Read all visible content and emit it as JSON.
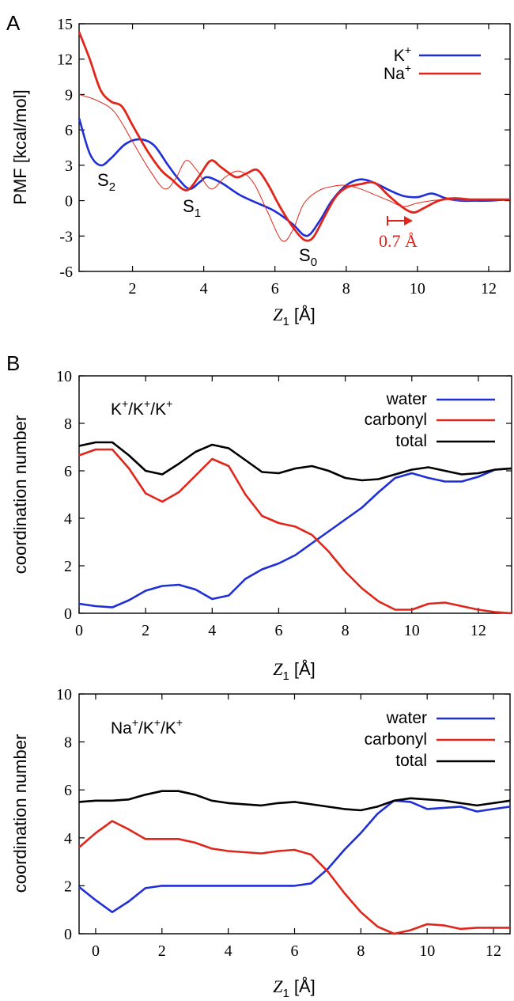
{
  "chart_data": [
    {
      "panel": "A",
      "type": "line",
      "xlabel": "Z1 [Å]",
      "ylabel": "PMF [kcal/mol]",
      "xlim": [
        0.5,
        12.6
      ],
      "ylim": [
        -6,
        15
      ],
      "xticks": [
        2,
        4,
        6,
        8,
        10,
        12
      ],
      "yticks": [
        -6,
        -3,
        0,
        3,
        6,
        9,
        12,
        15
      ],
      "legend_position": "top-right",
      "legend": [
        "K+",
        "Na+"
      ],
      "annotations": [
        "S2",
        "S1",
        "S0",
        "0.7 Å"
      ],
      "series": [
        {
          "name": "K+",
          "color": "#1f2fd6",
          "width": 2.6,
          "x": [
            0.5,
            0.8,
            1.1,
            1.4,
            1.8,
            2.2,
            2.6,
            3.0,
            3.3,
            3.6,
            3.9,
            4.1,
            4.5,
            5.0,
            5.5,
            6.0,
            6.5,
            6.8,
            7.0,
            7.3,
            7.6,
            8.0,
            8.4,
            8.8,
            9.2,
            9.6,
            10.0,
            10.4,
            10.8,
            11.2,
            11.6,
            12.0,
            12.6
          ],
          "y": [
            7.0,
            4.0,
            3.0,
            3.6,
            4.8,
            5.2,
            4.7,
            3.0,
            1.8,
            1.0,
            1.6,
            2.0,
            1.5,
            0.5,
            -0.2,
            -0.9,
            -2.0,
            -2.9,
            -2.8,
            -1.5,
            0.0,
            1.3,
            1.8,
            1.5,
            0.9,
            0.4,
            0.3,
            0.6,
            0.2,
            0.0,
            0.0,
            0.0,
            0.1
          ]
        },
        {
          "name": "Na+",
          "color": "#e0261b",
          "width": 2.8,
          "x": [
            0.5,
            0.8,
            1.1,
            1.4,
            1.7,
            2.0,
            2.4,
            2.8,
            3.1,
            3.4,
            3.6,
            3.9,
            4.2,
            4.5,
            4.9,
            5.2,
            5.5,
            5.8,
            6.1,
            6.4,
            6.7,
            6.9,
            7.1,
            7.4,
            7.7,
            8.0,
            8.4,
            8.8,
            9.2,
            9.6,
            9.9,
            10.2,
            10.6,
            11.0,
            11.5,
            12.0,
            12.6
          ],
          "y": [
            14.3,
            12.0,
            9.4,
            8.4,
            8.0,
            6.4,
            4.3,
            2.6,
            1.8,
            1.0,
            1.0,
            2.2,
            3.4,
            2.8,
            2.0,
            2.3,
            2.6,
            1.4,
            -0.3,
            -1.8,
            -3.0,
            -3.4,
            -3.0,
            -1.3,
            0.3,
            1.1,
            1.4,
            1.5,
            0.4,
            -0.6,
            -1.0,
            -0.6,
            0.0,
            0.2,
            0.1,
            0.1,
            0.1
          ]
        },
        {
          "name": "",
          "color": "#e0261b",
          "width": 1.0,
          "x": [
            0.5,
            1.0,
            1.5,
            2.0,
            2.5,
            2.9,
            3.2,
            3.5,
            3.8,
            4.2,
            4.6,
            5.0,
            5.4,
            5.8,
            6.2,
            6.5,
            6.8,
            7.2,
            7.6,
            8.0,
            8.4,
            8.8,
            9.2,
            9.6,
            10.0,
            10.4,
            10.8,
            11.2,
            12.0,
            12.6
          ],
          "y": [
            9.0,
            8.5,
            7.5,
            5.0,
            2.5,
            1.0,
            1.8,
            3.4,
            2.6,
            1.0,
            2.0,
            2.5,
            1.5,
            -1.0,
            -3.4,
            -2.5,
            -0.3,
            0.8,
            1.2,
            1.3,
            1.0,
            0.5,
            0.0,
            -0.5,
            -0.2,
            0.0,
            0.1,
            0.0,
            0.1,
            0.1
          ]
        }
      ]
    },
    {
      "panel": "B",
      "type": "line",
      "title": "K+/K+/K+",
      "xlabel": "Z1 [Å]",
      "ylabel": "coordination number",
      "xlim": [
        0,
        13
      ],
      "ylim": [
        0,
        10
      ],
      "xticks": [
        0,
        2,
        4,
        6,
        8,
        10,
        12
      ],
      "yticks": [
        0,
        2,
        4,
        6,
        8,
        10
      ],
      "legend_position": "top-right",
      "legend": [
        "water",
        "carbonyl",
        "total"
      ],
      "series": [
        {
          "name": "water",
          "color": "#1f2fd6",
          "x": [
            0,
            0.5,
            1,
            1.5,
            2,
            2.5,
            3,
            3.5,
            4,
            4.5,
            5,
            5.5,
            6,
            6.5,
            7,
            7.5,
            8,
            8.5,
            9,
            9.5,
            10,
            10.5,
            11,
            11.5,
            12,
            12.5,
            13
          ],
          "y": [
            0.4,
            0.3,
            0.25,
            0.55,
            0.95,
            1.15,
            1.2,
            1.0,
            0.6,
            0.75,
            1.45,
            1.85,
            2.1,
            2.45,
            2.95,
            3.45,
            3.95,
            4.45,
            5.1,
            5.7,
            5.9,
            5.7,
            5.55,
            5.55,
            5.75,
            6.05,
            6.1
          ]
        },
        {
          "name": "carbonyl",
          "color": "#e0261b",
          "x": [
            0,
            0.5,
            1,
            1.5,
            2,
            2.5,
            3,
            3.5,
            4,
            4.5,
            5,
            5.5,
            6,
            6.5,
            7,
            7.5,
            8,
            8.5,
            9,
            9.5,
            10,
            10.5,
            11,
            11.5,
            12,
            12.5,
            13
          ],
          "y": [
            6.65,
            6.9,
            6.9,
            6.1,
            5.05,
            4.7,
            5.1,
            5.8,
            6.5,
            6.2,
            5.0,
            4.1,
            3.8,
            3.65,
            3.3,
            2.6,
            1.75,
            1.05,
            0.5,
            0.15,
            0.15,
            0.4,
            0.45,
            0.3,
            0.15,
            0.05,
            0.0
          ]
        },
        {
          "name": "total",
          "color": "#000000",
          "x": [
            0,
            0.5,
            1,
            1.5,
            2,
            2.5,
            3,
            3.5,
            4,
            4.5,
            5,
            5.5,
            6,
            6.5,
            7,
            7.5,
            8,
            8.5,
            9,
            9.5,
            10,
            10.5,
            11,
            11.5,
            12,
            12.5,
            13
          ],
          "y": [
            7.05,
            7.2,
            7.2,
            6.65,
            6.0,
            5.85,
            6.3,
            6.8,
            7.1,
            6.95,
            6.45,
            5.95,
            5.9,
            6.1,
            6.2,
            6.0,
            5.7,
            5.6,
            5.65,
            5.85,
            6.05,
            6.15,
            6.0,
            5.85,
            5.9,
            6.05,
            6.1
          ]
        }
      ]
    },
    {
      "panel": "",
      "type": "line",
      "title": "Na+/K+/K+",
      "xlabel": "Z1 [Å]",
      "ylabel": "coordination number",
      "xlim": [
        -0.5,
        12.5
      ],
      "ylim": [
        0,
        10
      ],
      "xticks": [
        0,
        2,
        4,
        6,
        8,
        10,
        12
      ],
      "yticks": [
        0,
        2,
        4,
        6,
        8,
        10
      ],
      "legend_position": "top-right",
      "legend": [
        "water",
        "carbonyl",
        "total"
      ],
      "series": [
        {
          "name": "water",
          "color": "#1f2fd6",
          "x": [
            -0.5,
            0,
            0.5,
            1,
            1.5,
            2,
            2.5,
            3,
            3.5,
            4,
            4.5,
            5,
            5.5,
            6,
            6.5,
            7,
            7.5,
            8,
            8.5,
            9,
            9.5,
            10,
            10.5,
            11,
            11.5,
            12,
            12.5
          ],
          "y": [
            1.95,
            1.4,
            0.9,
            1.35,
            1.9,
            2.0,
            2.0,
            2.0,
            2.0,
            2.0,
            2.0,
            2.0,
            2.0,
            2.0,
            2.1,
            2.7,
            3.5,
            4.2,
            5.0,
            5.55,
            5.5,
            5.2,
            5.25,
            5.3,
            5.1,
            5.2,
            5.3
          ]
        },
        {
          "name": "carbonyl",
          "color": "#e0261b",
          "x": [
            -0.5,
            0,
            0.5,
            1,
            1.5,
            2,
            2.5,
            3,
            3.5,
            4,
            4.5,
            5,
            5.5,
            6,
            6.5,
            7,
            7.5,
            8,
            8.5,
            9,
            9.5,
            10,
            10.5,
            11,
            11.5,
            12,
            12.5
          ],
          "y": [
            3.6,
            4.2,
            4.7,
            4.35,
            3.95,
            3.95,
            3.95,
            3.8,
            3.55,
            3.45,
            3.4,
            3.35,
            3.45,
            3.5,
            3.3,
            2.6,
            1.7,
            0.9,
            0.3,
            0.0,
            0.15,
            0.4,
            0.35,
            0.2,
            0.25,
            0.25,
            0.25
          ]
        },
        {
          "name": "total",
          "color": "#000000",
          "x": [
            -0.5,
            0,
            0.5,
            1,
            1.5,
            2,
            2.5,
            3,
            3.5,
            4,
            4.5,
            5,
            5.5,
            6,
            6.5,
            7,
            7.5,
            8,
            8.5,
            9,
            9.5,
            10,
            10.5,
            11,
            11.5,
            12,
            12.5
          ],
          "y": [
            5.5,
            5.55,
            5.55,
            5.6,
            5.8,
            5.95,
            5.95,
            5.8,
            5.55,
            5.45,
            5.4,
            5.35,
            5.45,
            5.5,
            5.4,
            5.3,
            5.2,
            5.15,
            5.3,
            5.55,
            5.65,
            5.6,
            5.55,
            5.45,
            5.35,
            5.45,
            5.55
          ]
        }
      ]
    }
  ],
  "labels": {
    "panelA": "A",
    "panelB": "B",
    "annS2": "S",
    "annS2sub": "2",
    "annS1": "S",
    "annS1sub": "1",
    "annS0": "S",
    "annS0sub": "0",
    "shift": "0.7 Å",
    "zlabel_Z": "Z",
    "zlabel_sub": "1",
    "zlabel_unit": " [Å]",
    "legK": "K",
    "legNa": "Na",
    "plus": "+",
    "water": "water",
    "carbonyl": "carbonyl",
    "total": "total",
    "titleB1_a": "K",
    "titleB1_b": "/K",
    "titleB1_c": "/K",
    "titleB2_a": "Na",
    "titleB2_b": "/K",
    "titleB2_c": "/K",
    "ylabelA": "PMF [kcal/mol]",
    "ylabelB": "coordination number"
  }
}
